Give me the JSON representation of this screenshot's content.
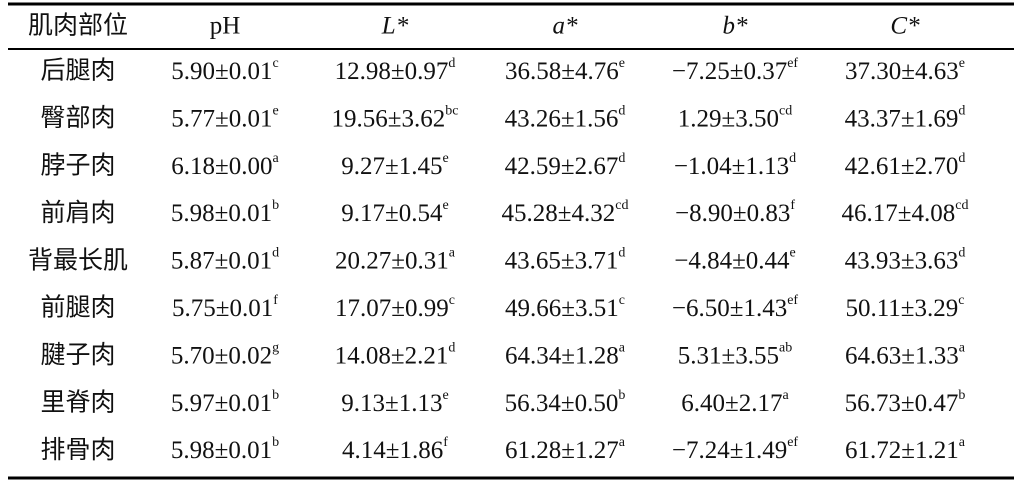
{
  "table": {
    "header": [
      "肌肉部位",
      "pH",
      "L*",
      "a*",
      "b*",
      "C*"
    ],
    "rows": [
      {
        "name": "后腿肉",
        "cells": [
          {
            "text": "5.90±0.01",
            "sup": "c"
          },
          {
            "text": "12.98±0.97",
            "sup": "d"
          },
          {
            "text": "36.58±4.76",
            "sup": "e"
          },
          {
            "text": "−7.25±0.37",
            "sup": "ef"
          },
          {
            "text": "37.30±4.63",
            "sup": "e"
          }
        ]
      },
      {
        "name": "臀部肉",
        "cells": [
          {
            "text": "5.77±0.01",
            "sup": "e"
          },
          {
            "text": "19.56±3.62",
            "sup": "bc"
          },
          {
            "text": "43.26±1.56",
            "sup": "d"
          },
          {
            "text": "1.29±3.50",
            "sup": "cd"
          },
          {
            "text": "43.37±1.69",
            "sup": "d"
          }
        ]
      },
      {
        "name": "脖子肉",
        "cells": [
          {
            "text": "6.18±0.00",
            "sup": "a"
          },
          {
            "text": "9.27±1.45",
            "sup": "e"
          },
          {
            "text": "42.59±2.67",
            "sup": "d"
          },
          {
            "text": "−1.04±1.13",
            "sup": "d"
          },
          {
            "text": "42.61±2.70",
            "sup": "d"
          }
        ]
      },
      {
        "name": "前肩肉",
        "cells": [
          {
            "text": "5.98±0.01",
            "sup": "b"
          },
          {
            "text": "9.17±0.54",
            "sup": "e"
          },
          {
            "text": "45.28±4.32",
            "sup": "cd"
          },
          {
            "text": "−8.90±0.83",
            "sup": "f"
          },
          {
            "text": "46.17±4.08",
            "sup": "cd"
          }
        ]
      },
      {
        "name": "背最长肌",
        "cells": [
          {
            "text": "5.87±0.01",
            "sup": "d"
          },
          {
            "text": "20.27±0.31",
            "sup": "a"
          },
          {
            "text": "43.65±3.71",
            "sup": "d"
          },
          {
            "text": "−4.84±0.44",
            "sup": "e"
          },
          {
            "text": "43.93±3.63",
            "sup": "d"
          }
        ]
      },
      {
        "name": "前腿肉",
        "cells": [
          {
            "text": "5.75±0.01",
            "sup": "f"
          },
          {
            "text": "17.07±0.99",
            "sup": "c"
          },
          {
            "text": "49.66±3.51",
            "sup": "c"
          },
          {
            "text": "−6.50±1.43",
            "sup": "ef"
          },
          {
            "text": "50.11±3.29",
            "sup": "c"
          }
        ]
      },
      {
        "name": "腱子肉",
        "cells": [
          {
            "text": "5.70±0.02",
            "sup": "g"
          },
          {
            "text": "14.08±2.21",
            "sup": "d"
          },
          {
            "text": "64.34±1.28",
            "sup": "a"
          },
          {
            "text": "5.31±3.55",
            "sup": "ab"
          },
          {
            "text": "64.63±1.33",
            "sup": "a"
          }
        ]
      },
      {
        "name": "里脊肉",
        "cells": [
          {
            "text": "5.97±0.01",
            "sup": "b"
          },
          {
            "text": "9.13±1.13",
            "sup": "e"
          },
          {
            "text": "56.34±0.50",
            "sup": "b"
          },
          {
            "text": "6.40±2.17",
            "sup": "a"
          },
          {
            "text": "56.73±0.47",
            "sup": "b"
          }
        ]
      },
      {
        "name": "排骨肉",
        "cells": [
          {
            "text": "5.98±0.01",
            "sup": "b"
          },
          {
            "text": "4.14±1.86",
            "sup": "f"
          },
          {
            "text": "61.28±1.27",
            "sup": "a"
          },
          {
            "text": "−7.24±1.49",
            "sup": "ef"
          },
          {
            "text": "61.72±1.21",
            "sup": "a"
          }
        ]
      }
    ]
  }
}
